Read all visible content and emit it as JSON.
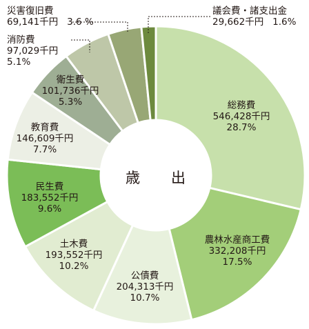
{
  "chart_data": {
    "type": "pie",
    "variant": "donut",
    "title": "",
    "center_label": "歳　出",
    "unit": "千円",
    "categories": [
      "総務費",
      "農林水産商工費",
      "公債費",
      "土木費",
      "民生費",
      "教育費",
      "衛生費",
      "消防費",
      "災害復旧費",
      "議会費・諸支出金"
    ],
    "values": [
      546428,
      332208,
      204313,
      193552,
      183552,
      146609,
      101736,
      97029,
      69141,
      29662
    ],
    "amounts": [
      "546,428千円",
      "332,208千円",
      "204,313千円",
      "193,552千円",
      "183,552千円",
      "146,609千円",
      "101,736千円",
      "97,029千円",
      "69,141千円",
      "29,662千円"
    ],
    "percents": [
      "28.7%",
      "17.5%",
      "10.7%",
      "10.2%",
      "9.6%",
      "7.7%",
      "5.3%",
      "5.1%",
      "3.6 %",
      "1.6%"
    ],
    "colors": [
      "#c7e0ab",
      "#a3ce79",
      "#e8f1dd",
      "#e1ecd1",
      "#7bbd57",
      "#ecefe5",
      "#9eae94",
      "#bec7a8",
      "#98a775",
      "#6d8a3e"
    ],
    "start_angle": "12 o'clock",
    "direction": "clockwise"
  }
}
